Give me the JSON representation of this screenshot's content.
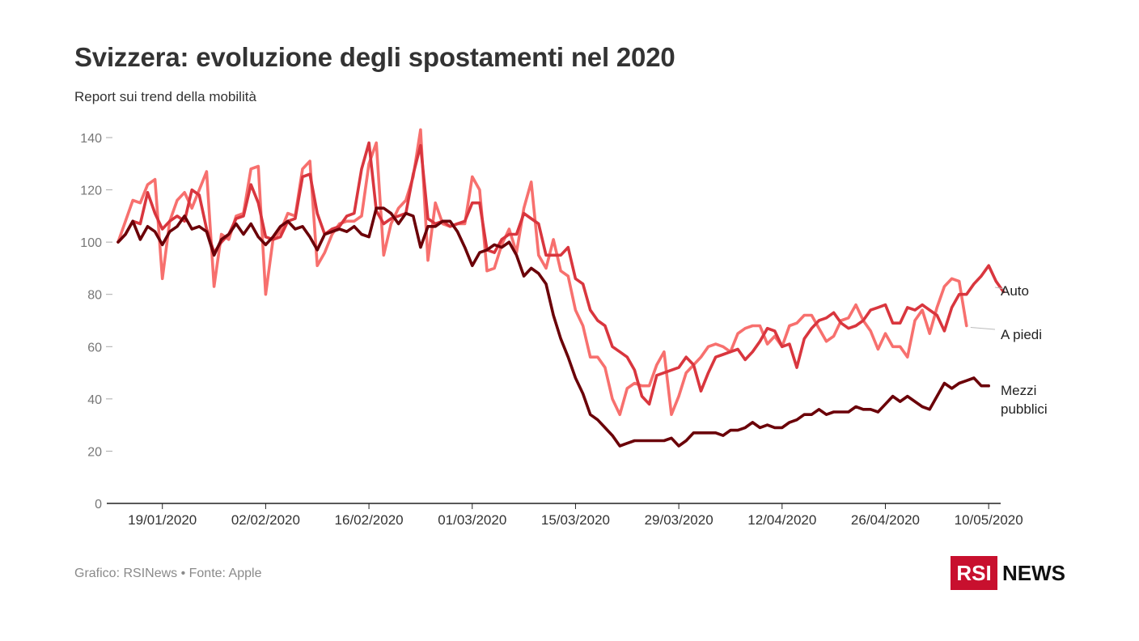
{
  "title": "Svizzera: evoluzione degli spostamenti nel 2020",
  "subtitle": "Report sui trend della mobilità",
  "footer": "Grafico: RSINews • Fonte: Apple",
  "logo": {
    "box_text": "RSI",
    "text": "NEWS",
    "box_color": "#c8102e"
  },
  "chart_data": {
    "type": "line",
    "title": "Svizzera: evoluzione degli spostamenti nel 2020",
    "subtitle": "Report sui trend della mobilità",
    "xlabel": "",
    "ylabel": "",
    "ylim": [
      0,
      140
    ],
    "yticks": [
      0,
      20,
      40,
      60,
      80,
      100,
      120,
      140
    ],
    "x_start": "13/01/2020",
    "x_ticks": [
      "19/01/2020",
      "02/02/2020",
      "16/02/2020",
      "01/03/2020",
      "15/03/2020",
      "29/03/2020",
      "12/04/2020",
      "26/04/2020",
      "10/05/2020"
    ],
    "grid": false,
    "legend": "direct labels at line ends (right)",
    "series": [
      {
        "name": "A piedi",
        "color": "#f7706e",
        "values": [
          100,
          108,
          116,
          115,
          122,
          124,
          86,
          108,
          116,
          119,
          113,
          120,
          127,
          83,
          103,
          101,
          110,
          111,
          128,
          129,
          80,
          101,
          104,
          111,
          110,
          128,
          131,
          91,
          96,
          103,
          107,
          108,
          108,
          110,
          130,
          138,
          95,
          107,
          113,
          116,
          125,
          143,
          93,
          115,
          107,
          106,
          107,
          107,
          125,
          120,
          89,
          90,
          99,
          105,
          96,
          113,
          123,
          95,
          90,
          101,
          89,
          87,
          74,
          68,
          56,
          56,
          52,
          40,
          34,
          44,
          46,
          45,
          45,
          53,
          58,
          34,
          41,
          50,
          53,
          56,
          60,
          61,
          60,
          58,
          65,
          67,
          68,
          68,
          61,
          64,
          60,
          68,
          69,
          72,
          72,
          67,
          62,
          64,
          70,
          71,
          76,
          70,
          66,
          59,
          65,
          60,
          60,
          56,
          70,
          74,
          65,
          75,
          83,
          86,
          85,
          68
        ]
      },
      {
        "name": "Auto",
        "color": "#d9363e",
        "values": [
          100,
          103,
          108,
          107,
          119,
          111,
          105,
          108,
          110,
          108,
          120,
          118,
          105,
          96,
          100,
          103,
          109,
          110,
          122,
          115,
          102,
          101,
          102,
          108,
          109,
          125,
          126,
          111,
          103,
          105,
          106,
          110,
          111,
          128,
          138,
          112,
          107,
          109,
          110,
          111,
          126,
          137,
          109,
          107,
          108,
          106,
          107,
          108,
          115,
          115,
          97,
          96,
          101,
          103,
          103,
          111,
          109,
          107,
          95,
          95,
          95,
          98,
          86,
          84,
          74,
          70,
          68,
          60,
          58,
          56,
          51,
          41,
          38,
          49,
          50,
          51,
          52,
          56,
          53,
          43,
          50,
          56,
          57,
          58,
          59,
          55,
          58,
          62,
          67,
          66,
          60,
          61,
          52,
          63,
          67,
          70,
          71,
          73,
          69,
          67,
          68,
          70,
          74,
          75,
          76,
          69,
          69,
          75,
          74,
          76,
          74,
          72,
          66,
          75,
          80,
          80,
          84,
          87,
          91,
          85,
          81
        ]
      },
      {
        "name": "Mezzi pubblici",
        "color": "#6b0008",
        "values": [
          100,
          103,
          108,
          101,
          106,
          104,
          99,
          104,
          106,
          110,
          105,
          106,
          104,
          95,
          101,
          103,
          107,
          103,
          107,
          102,
          99,
          102,
          106,
          108,
          105,
          106,
          102,
          97,
          103,
          104,
          105,
          104,
          106,
          103,
          102,
          113,
          113,
          111,
          107,
          111,
          110,
          98,
          106,
          106,
          108,
          108,
          104,
          98,
          91,
          96,
          97,
          99,
          98,
          100,
          95,
          87,
          90,
          88,
          84,
          72,
          63,
          56,
          48,
          42,
          34,
          32,
          29,
          26,
          22,
          23,
          24,
          24,
          24,
          24,
          24,
          25,
          22,
          24,
          27,
          27,
          27,
          27,
          26,
          28,
          28,
          29,
          31,
          29,
          30,
          29,
          29,
          31,
          32,
          34,
          34,
          36,
          34,
          35,
          35,
          35,
          37,
          36,
          36,
          35,
          38,
          41,
          39,
          41,
          39,
          37,
          36,
          41,
          46,
          44,
          46,
          47,
          48,
          45,
          45
        ]
      }
    ],
    "series_labels": [
      {
        "series": "Auto",
        "lines": [
          "Auto"
        ]
      },
      {
        "series": "A piedi",
        "lines": [
          "A piedi"
        ]
      },
      {
        "series": "Mezzi pubblici",
        "lines": [
          "Mezzi",
          "pubblici"
        ]
      }
    ]
  }
}
